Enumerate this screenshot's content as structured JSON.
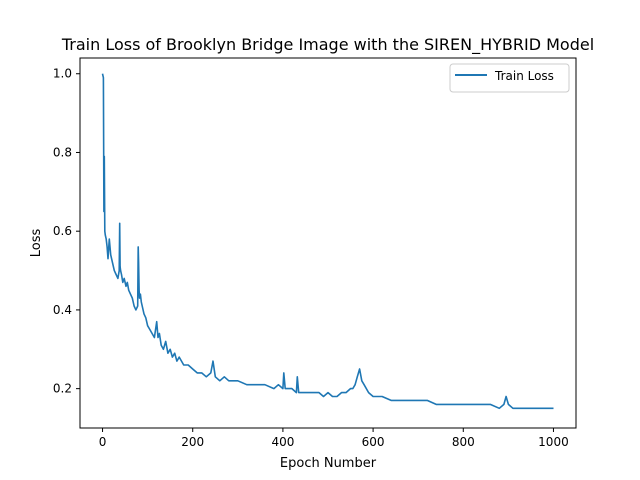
{
  "chart_data": {
    "type": "line",
    "title": "Train Loss of Brooklyn Bridge Image with the SIREN_HYBRID Model",
    "xlabel": "Epoch Number",
    "ylabel": "Loss",
    "xlim": [
      -50,
      1050
    ],
    "ylim": [
      0.1,
      1.04
    ],
    "xticks": [
      0,
      200,
      400,
      600,
      800,
      1000
    ],
    "yticks": [
      0.2,
      0.4,
      0.6,
      0.8,
      1.0
    ],
    "xtick_labels": [
      "0",
      "200",
      "400",
      "600",
      "800",
      "1000"
    ],
    "ytick_labels": [
      "0.2",
      "0.4",
      "0.6",
      "0.8",
      "1.0"
    ],
    "grid": false,
    "legend_position": "top-right",
    "colors": {
      "series": "#1f77b4",
      "axes": "#000000",
      "background": "#ffffff"
    },
    "series": [
      {
        "name": "Train Loss",
        "x": [
          0,
          2,
          3,
          4,
          5,
          6,
          8,
          10,
          12,
          15,
          18,
          22,
          26,
          30,
          34,
          37,
          38,
          39,
          40,
          42,
          45,
          48,
          52,
          55,
          58,
          62,
          66,
          70,
          74,
          78,
          79,
          80,
          81,
          82,
          84,
          86,
          88,
          92,
          96,
          100,
          105,
          110,
          115,
          120,
          123,
          126,
          130,
          135,
          140,
          145,
          150,
          155,
          160,
          165,
          170,
          175,
          180,
          190,
          200,
          210,
          220,
          230,
          240,
          245,
          250,
          260,
          270,
          280,
          290,
          300,
          320,
          340,
          360,
          380,
          390,
          400,
          402,
          405,
          410,
          420,
          430,
          432,
          435,
          440,
          450,
          460,
          470,
          480,
          490,
          500,
          510,
          520,
          530,
          540,
          550,
          555,
          560,
          565,
          570,
          575,
          580,
          590,
          600,
          620,
          640,
          660,
          680,
          700,
          720,
          740,
          760,
          780,
          800,
          820,
          840,
          860,
          880,
          890,
          895,
          900,
          910,
          920,
          930,
          940,
          950,
          960,
          970,
          980,
          990,
          1000
        ],
        "values": [
          1.0,
          0.99,
          0.65,
          0.79,
          0.6,
          0.59,
          0.58,
          0.56,
          0.53,
          0.58,
          0.54,
          0.52,
          0.5,
          0.49,
          0.48,
          0.5,
          0.62,
          0.51,
          0.5,
          0.49,
          0.47,
          0.48,
          0.46,
          0.47,
          0.45,
          0.44,
          0.43,
          0.41,
          0.4,
          0.41,
          0.56,
          0.52,
          0.45,
          0.43,
          0.44,
          0.42,
          0.41,
          0.39,
          0.38,
          0.36,
          0.35,
          0.34,
          0.33,
          0.37,
          0.33,
          0.34,
          0.31,
          0.3,
          0.32,
          0.29,
          0.3,
          0.28,
          0.29,
          0.27,
          0.28,
          0.27,
          0.26,
          0.26,
          0.25,
          0.24,
          0.24,
          0.23,
          0.24,
          0.27,
          0.23,
          0.22,
          0.23,
          0.22,
          0.22,
          0.22,
          0.21,
          0.21,
          0.21,
          0.2,
          0.21,
          0.2,
          0.24,
          0.2,
          0.2,
          0.2,
          0.19,
          0.23,
          0.19,
          0.19,
          0.19,
          0.19,
          0.19,
          0.19,
          0.18,
          0.19,
          0.18,
          0.18,
          0.19,
          0.19,
          0.2,
          0.2,
          0.21,
          0.23,
          0.25,
          0.22,
          0.21,
          0.19,
          0.18,
          0.18,
          0.17,
          0.17,
          0.17,
          0.17,
          0.17,
          0.16,
          0.16,
          0.16,
          0.16,
          0.16,
          0.16,
          0.16,
          0.15,
          0.16,
          0.18,
          0.16,
          0.15,
          0.15,
          0.15,
          0.15,
          0.15,
          0.15,
          0.15,
          0.15,
          0.15,
          0.15
        ]
      }
    ]
  }
}
